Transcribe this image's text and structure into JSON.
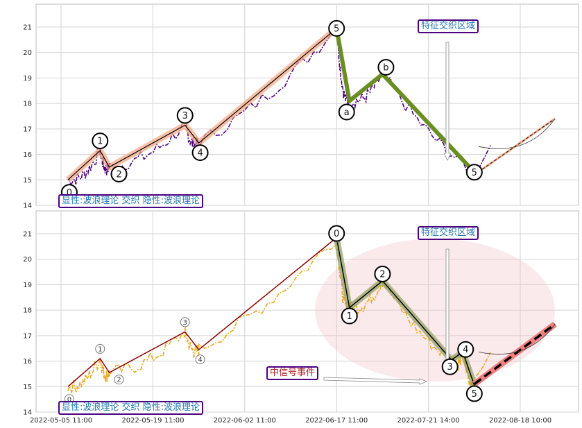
{
  "chart_data": [
    {
      "type": "line",
      "panel": "top",
      "ylim": [
        14,
        21.9
      ],
      "yticks": [
        14,
        15,
        16,
        17,
        18,
        19,
        20,
        21
      ],
      "grid": true,
      "labels": {
        "feature_zone": "特征交织区域",
        "theory_box": "显性:波浪理论 交织 隐性:波浪理论"
      },
      "price_color": "#4b0082",
      "wave_color": "#f4a582",
      "wave_points": [
        {
          "label": "0",
          "t": 0.015,
          "y": 15.0
        },
        {
          "label": "1",
          "t": 0.085,
          "y": 16.15
        },
        {
          "label": "2",
          "t": 0.105,
          "y": 15.5
        },
        {
          "label": "3",
          "t": 0.27,
          "y": 17.15
        },
        {
          "label": "4",
          "t": 0.3,
          "y": 16.45
        },
        {
          "label": "5",
          "t": 0.6,
          "y": 20.95
        }
      ],
      "abc_color": "#6b8e23",
      "abc_points": [
        {
          "label": "5",
          "t": 0.6,
          "y": 20.95
        },
        {
          "label": "a",
          "t": 0.628,
          "y": 18.1
        },
        {
          "label": "b",
          "t": 0.7,
          "y": 19.15
        },
        {
          "label": "5",
          "t": 0.9,
          "y": 15.3
        }
      ],
      "forecast": {
        "t0": 0.9,
        "y0": 15.2,
        "t1": 1.15,
        "y1": 17.4
      }
    },
    {
      "type": "line",
      "panel": "bottom",
      "ylim": [
        14,
        21.9
      ],
      "yticks": [
        14,
        15,
        16,
        17,
        18,
        19,
        20,
        21
      ],
      "grid": true,
      "labels": {
        "feature_zone": "特征交织区域",
        "signal_event": "中信号事件",
        "theory_box": "显性:波浪理论 交织 隐性:波浪理论"
      },
      "price_color": "#e8a820",
      "wave_color": "#8b0000",
      "wave_points": [
        {
          "label": "0",
          "t": 0.015,
          "y": 15.0
        },
        {
          "label": "1",
          "t": 0.085,
          "y": 16.1
        },
        {
          "label": "2",
          "t": 0.105,
          "y": 15.55
        },
        {
          "label": "3",
          "t": 0.27,
          "y": 17.15
        },
        {
          "label": "4",
          "t": 0.3,
          "y": 16.45
        },
        {
          "label": "5",
          "t": 0.6,
          "y": 20.85
        }
      ],
      "abc_color": "#556b2f",
      "abc_points": [
        {
          "label": "0",
          "t": 0.6,
          "y": 20.85
        },
        {
          "label": "1",
          "t": 0.628,
          "y": 18.1
        },
        {
          "label": "2",
          "t": 0.7,
          "y": 19.15
        },
        {
          "label": "3",
          "t": 0.85,
          "y": 16.05
        },
        {
          "label": "4",
          "t": 0.875,
          "y": 16.35
        },
        {
          "label": "5",
          "t": 0.9,
          "y": 15.05
        }
      ],
      "forecast": {
        "t0": 0.9,
        "y0": 15.1,
        "t1": 1.15,
        "y1": 17.45
      }
    }
  ],
  "xaxis": {
    "ticks": [
      {
        "label": "2022-05-05 11:00",
        "t": 0.0
      },
      {
        "label": "2022-05-19 11:00",
        "t": 0.2
      },
      {
        "label": "2022-06-02 11:00",
        "t": 0.4
      },
      {
        "label": "2022-06-17 11:00",
        "t": 0.6
      },
      {
        "label": "2022-07-21 14:00",
        "t": 0.8
      },
      {
        "label": "2022-08-18 10:00",
        "t": 1.0
      }
    ]
  }
}
